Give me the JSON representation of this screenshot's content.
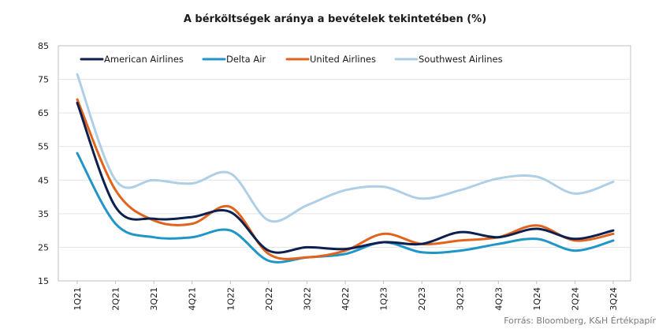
{
  "chart_data": {
    "type": "line",
    "title": "A bérköltségek aránya a bevételek tekintetében (%)",
    "source": "Forrás: Bloomberg, K&H Értékpapír",
    "xlabel": "",
    "ylabel": "",
    "ylim": [
      15,
      85
    ],
    "yticks": [
      15,
      25,
      35,
      45,
      55,
      65,
      75,
      85
    ],
    "grid": "horizontal",
    "legend_position": "top-left",
    "categories": [
      "1Q21",
      "2Q21",
      "3Q21",
      "4Q21",
      "1Q22",
      "2Q22",
      "3Q22",
      "4Q22",
      "1Q23",
      "2Q23",
      "3Q23",
      "4Q23",
      "1Q24",
      "2Q24",
      "3Q24"
    ],
    "series": [
      {
        "name": "American Airlines",
        "color": "#0d1f4e",
        "values": [
          68.0,
          37.0,
          33.5,
          34.0,
          35.5,
          24.0,
          25.0,
          24.5,
          26.5,
          26.0,
          29.5,
          28.0,
          30.5,
          27.5,
          30.0
        ]
      },
      {
        "name": "Delta Air",
        "color": "#1f95c8",
        "values": [
          53.0,
          32.0,
          28.0,
          28.0,
          30.0,
          21.0,
          22.0,
          23.0,
          26.5,
          23.5,
          24.0,
          26.0,
          27.5,
          24.0,
          27.0
        ]
      },
      {
        "name": "United Airlines",
        "color": "#e2641c",
        "values": [
          69.0,
          42.0,
          33.0,
          32.0,
          37.0,
          23.0,
          22.0,
          24.0,
          29.0,
          26.0,
          27.0,
          28.0,
          31.5,
          27.0,
          29.0
        ]
      },
      {
        "name": "Southwest Airlines",
        "color": "#aecfe6",
        "values": [
          76.5,
          45.0,
          45.0,
          44.0,
          47.0,
          33.0,
          37.5,
          42.0,
          43.0,
          39.5,
          42.0,
          45.5,
          46.0,
          41.0,
          44.5
        ]
      }
    ]
  }
}
